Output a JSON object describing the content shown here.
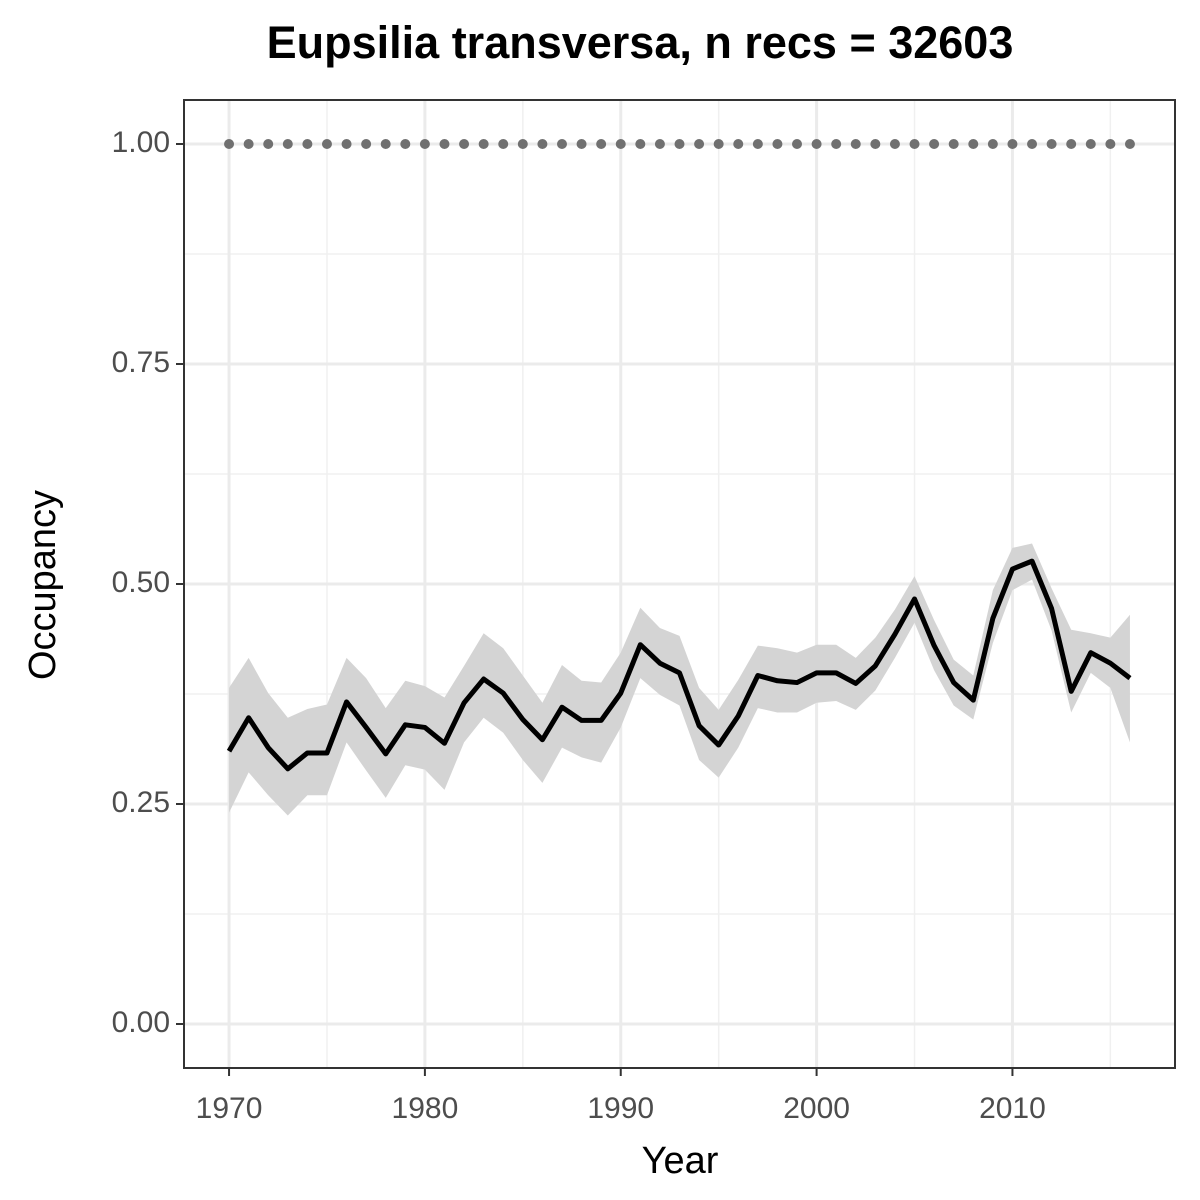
{
  "chart_data": {
    "type": "line",
    "title": "Eupsilia transversa, n recs = 32603",
    "x_label": "Year",
    "y_label": "Occupancy",
    "x": [
      1970,
      1971,
      1972,
      1973,
      1974,
      1975,
      1976,
      1977,
      1978,
      1979,
      1980,
      1981,
      1982,
      1983,
      1984,
      1985,
      1986,
      1987,
      1988,
      1989,
      1990,
      1991,
      1992,
      1993,
      1994,
      1995,
      1996,
      1997,
      1998,
      1999,
      2000,
      2001,
      2002,
      2003,
      2004,
      2005,
      2006,
      2007,
      2008,
      2009,
      2010,
      2011,
      2012,
      2013,
      2014,
      2015,
      2016
    ],
    "series": [
      {
        "color": "#000000",
        "band_color": "#d4d4d4",
        "style": "line",
        "values": [
          0.31,
          0.348,
          0.314,
          0.29,
          0.308,
          0.308,
          0.366,
          0.337,
          0.307,
          0.34,
          0.337,
          0.319,
          0.365,
          0.392,
          0.376,
          0.346,
          0.323,
          0.36,
          0.345,
          0.345,
          0.376,
          0.431,
          0.41,
          0.399,
          0.339,
          0.317,
          0.35,
          0.396,
          0.39,
          0.388,
          0.399,
          0.399,
          0.387,
          0.407,
          0.443,
          0.483,
          0.43,
          0.388,
          0.368,
          0.461,
          0.517,
          0.526,
          0.472,
          0.378,
          0.422,
          0.41,
          0.393
        ],
        "lower": [
          0.24,
          0.286,
          0.26,
          0.237,
          0.26,
          0.26,
          0.32,
          0.288,
          0.257,
          0.294,
          0.289,
          0.266,
          0.32,
          0.348,
          0.331,
          0.3,
          0.274,
          0.314,
          0.303,
          0.297,
          0.337,
          0.393,
          0.374,
          0.362,
          0.3,
          0.28,
          0.314,
          0.359,
          0.354,
          0.354,
          0.365,
          0.367,
          0.357,
          0.379,
          0.416,
          0.456,
          0.402,
          0.362,
          0.346,
          0.433,
          0.493,
          0.505,
          0.447,
          0.354,
          0.399,
          0.382,
          0.32
        ],
        "upper": [
          0.382,
          0.416,
          0.376,
          0.348,
          0.358,
          0.363,
          0.416,
          0.393,
          0.359,
          0.39,
          0.384,
          0.371,
          0.407,
          0.444,
          0.427,
          0.396,
          0.365,
          0.408,
          0.39,
          0.388,
          0.422,
          0.473,
          0.45,
          0.441,
          0.382,
          0.357,
          0.391,
          0.43,
          0.427,
          0.422,
          0.431,
          0.431,
          0.416,
          0.439,
          0.471,
          0.509,
          0.459,
          0.414,
          0.396,
          0.493,
          0.541,
          0.546,
          0.495,
          0.448,
          0.444,
          0.439,
          0.465
        ]
      },
      {
        "color": "#707070",
        "style": "points",
        "values": [
          1,
          1,
          1,
          1,
          1,
          1,
          1,
          1,
          1,
          1,
          1,
          1,
          1,
          1,
          1,
          1,
          1,
          1,
          1,
          1,
          1,
          1,
          1,
          1,
          1,
          1,
          1,
          1,
          1,
          1,
          1,
          1,
          1,
          1,
          1,
          1,
          1,
          1,
          1,
          1,
          1,
          1,
          1,
          1,
          1,
          1,
          1
        ]
      }
    ],
    "xlim": [
      1967.7,
      2018.3
    ],
    "xticks": [
      1970,
      1980,
      1990,
      2000,
      2010
    ],
    "ylim": [
      -0.05,
      1.05
    ],
    "yticks": [
      {
        "value": 0,
        "label": "0.00"
      },
      {
        "value": 0.25,
        "label": "0.25"
      },
      {
        "value": 0.5,
        "label": "0.50"
      },
      {
        "value": 0.75,
        "label": "0.75"
      },
      {
        "value": 1,
        "label": "1.00"
      }
    ],
    "grid": true
  }
}
